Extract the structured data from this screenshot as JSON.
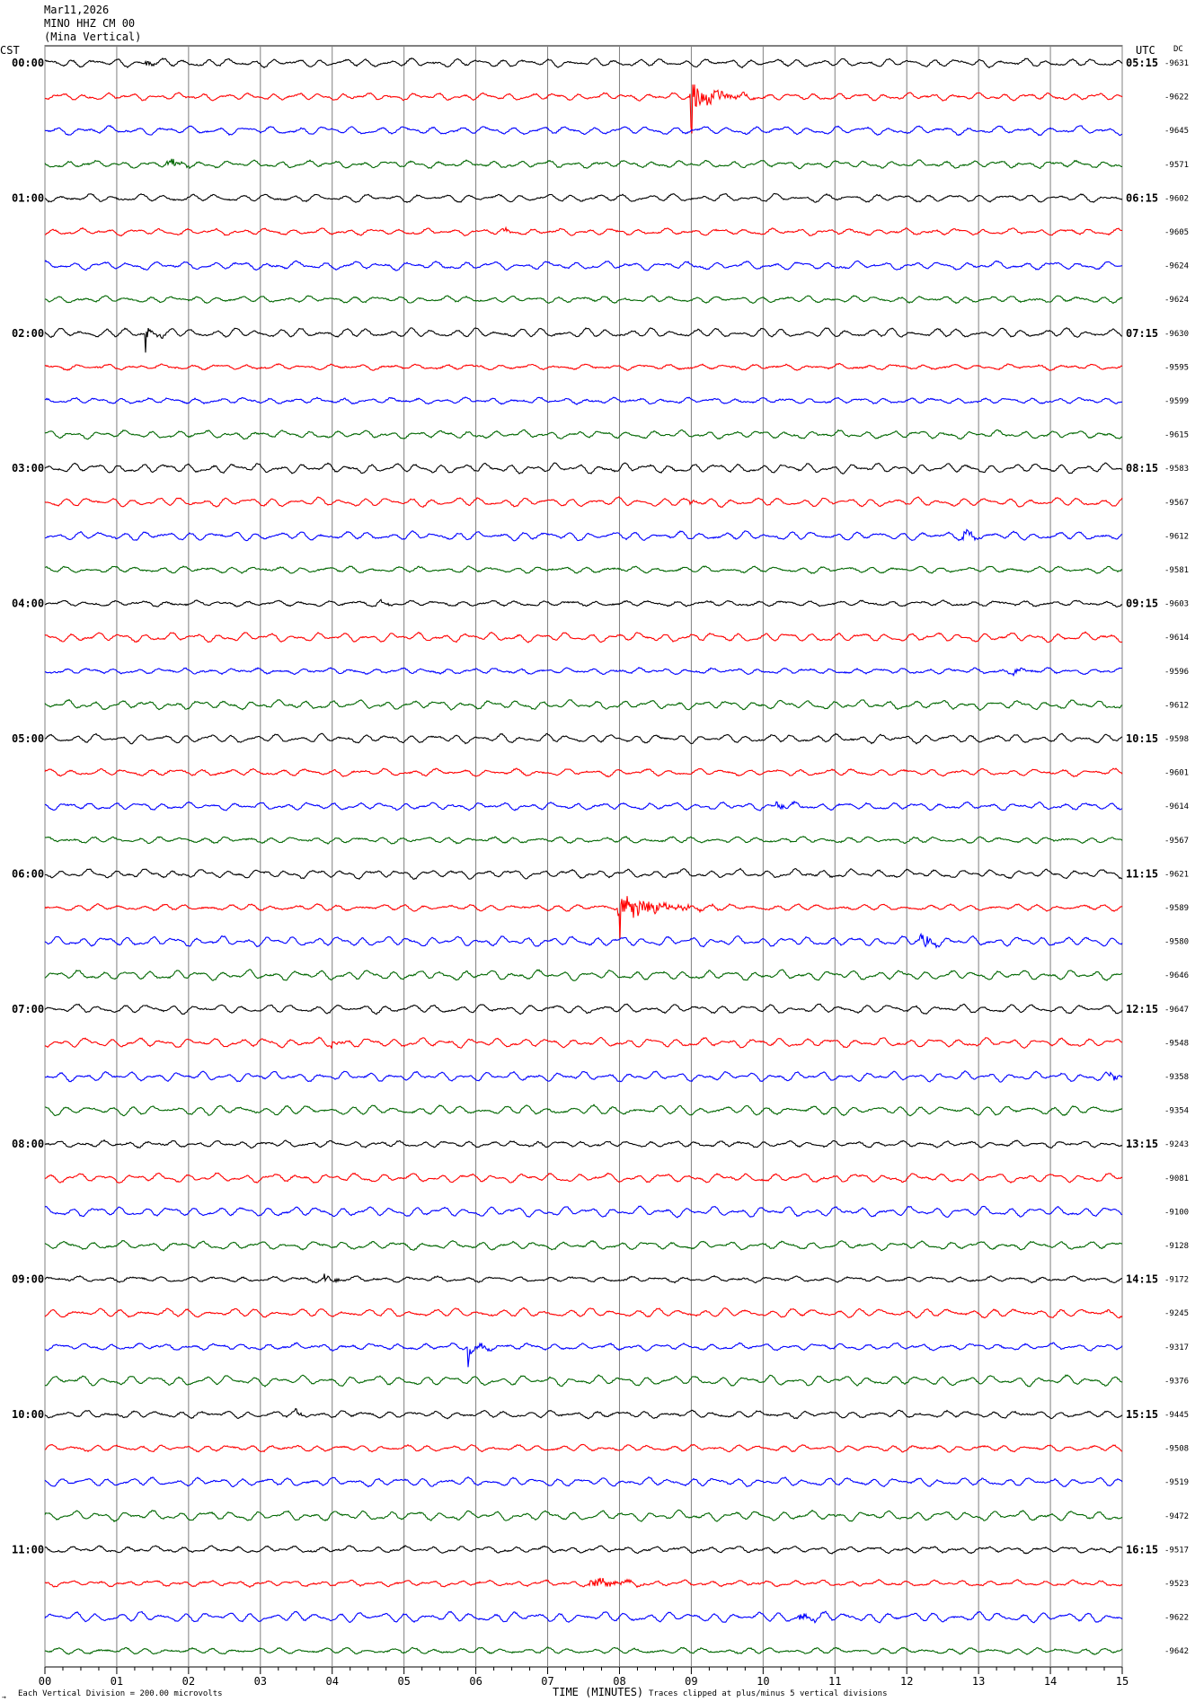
{
  "header": {
    "date": "Mar11,2026",
    "station": "MINO HHZ CM 00",
    "location": "(Mina Vertical)"
  },
  "labels": {
    "left_tz": "CST",
    "right_tz": "UTC",
    "dc": "DC",
    "scale_note": "Each Vertical Division =  200.00 microvolts",
    "clip_note": "Traces clipped at plus/minus 5 vertical divisions",
    "corner_mark": "→"
  },
  "chart_data": {
    "type": "line",
    "title": "Mar11,2026 MINO HHZ CM 00 (Mina Vertical)",
    "xlabel": "TIME (MINUTES)",
    "xlim": [
      0,
      15
    ],
    "x_ticks": [
      "00",
      "01",
      "02",
      "03",
      "04",
      "05",
      "06",
      "07",
      "08",
      "09",
      "10",
      "11",
      "12",
      "13",
      "14",
      "15"
    ],
    "trace_minutes": 15,
    "trace_colors": [
      "#000000",
      "#ff0000",
      "#0000ff",
      "#006600"
    ],
    "left_hour_labels": [
      "00:00",
      "01:00",
      "02:00",
      "03:00",
      "04:00",
      "05:00",
      "06:00",
      "07:00",
      "08:00",
      "09:00",
      "10:00",
      "11:00"
    ],
    "right_hour_labels": [
      "05:15",
      "06:15",
      "07:15",
      "08:15",
      "09:15",
      "10:15",
      "11:15",
      "12:15",
      "13:15",
      "14:15",
      "15:15",
      "16:15"
    ],
    "dc_values": [
      "-9631",
      "-9622",
      "-9645",
      "-9571",
      "-9602",
      "-9605",
      "-9624",
      "-9624",
      "-9630",
      "-9595",
      "-9599",
      "-9615",
      "-9583",
      "-9567",
      "-9612",
      "-9581",
      "-9603",
      "-9614",
      "-9596",
      "-9612",
      "-9598",
      "-9601",
      "-9614",
      "-9567",
      "-9621",
      "-9589",
      "-9580",
      "-9646",
      "-9647",
      "-9548",
      "-9358",
      "-9354",
      "-9243",
      "-9081",
      "-9100",
      "-9128",
      "-9172",
      "-9245",
      "-9317",
      "-9376",
      "-9445",
      "-9508",
      "-9519",
      "-9472",
      "-9517",
      "-9523",
      "-9622",
      "-9642"
    ],
    "events": [
      {
        "trace": 0,
        "minute": 1.4,
        "amplitude": 4,
        "duration": 0.3
      },
      {
        "trace": 1,
        "minute": 9.0,
        "amplitude": 18,
        "duration": 0.9,
        "spike": true
      },
      {
        "trace": 3,
        "minute": 1.7,
        "amplitude": 8,
        "duration": 0.4
      },
      {
        "trace": 5,
        "minute": 6.4,
        "amplitude": 3,
        "duration": 0.2
      },
      {
        "trace": 8,
        "minute": 1.4,
        "amplitude": 10,
        "duration": 0.4,
        "spike": true
      },
      {
        "trace": 13,
        "minute": 9.0,
        "amplitude": 4,
        "duration": 0.1
      },
      {
        "trace": 14,
        "minute": 12.8,
        "amplitude": 7,
        "duration": 0.35
      },
      {
        "trace": 16,
        "minute": 4.6,
        "amplitude": 4,
        "duration": 0.4
      },
      {
        "trace": 18,
        "minute": 13.5,
        "amplitude": 3,
        "duration": 0.3
      },
      {
        "trace": 22,
        "minute": 10.2,
        "amplitude": 4,
        "duration": 0.4
      },
      {
        "trace": 25,
        "minute": 8.0,
        "amplitude": 16,
        "duration": 1.4,
        "spike": true
      },
      {
        "trace": 26,
        "minute": 12.2,
        "amplitude": 10,
        "duration": 0.35
      },
      {
        "trace": 29,
        "minute": 4.0,
        "amplitude": 4,
        "duration": 0.3
      },
      {
        "trace": 30,
        "minute": 14.8,
        "amplitude": 7,
        "duration": 0.3
      },
      {
        "trace": 36,
        "minute": 3.9,
        "amplitude": 7,
        "duration": 0.4
      },
      {
        "trace": 37,
        "minute": 14.8,
        "amplitude": 3,
        "duration": 0.2
      },
      {
        "trace": 38,
        "minute": 5.9,
        "amplitude": 11,
        "duration": 0.4,
        "spike": true
      },
      {
        "trace": 40,
        "minute": 3.5,
        "amplitude": 3,
        "duration": 0.3
      },
      {
        "trace": 45,
        "minute": 7.6,
        "amplitude": 6,
        "duration": 1.0
      },
      {
        "trace": 46,
        "minute": 10.5,
        "amplitude": 4,
        "duration": 0.8
      }
    ]
  }
}
